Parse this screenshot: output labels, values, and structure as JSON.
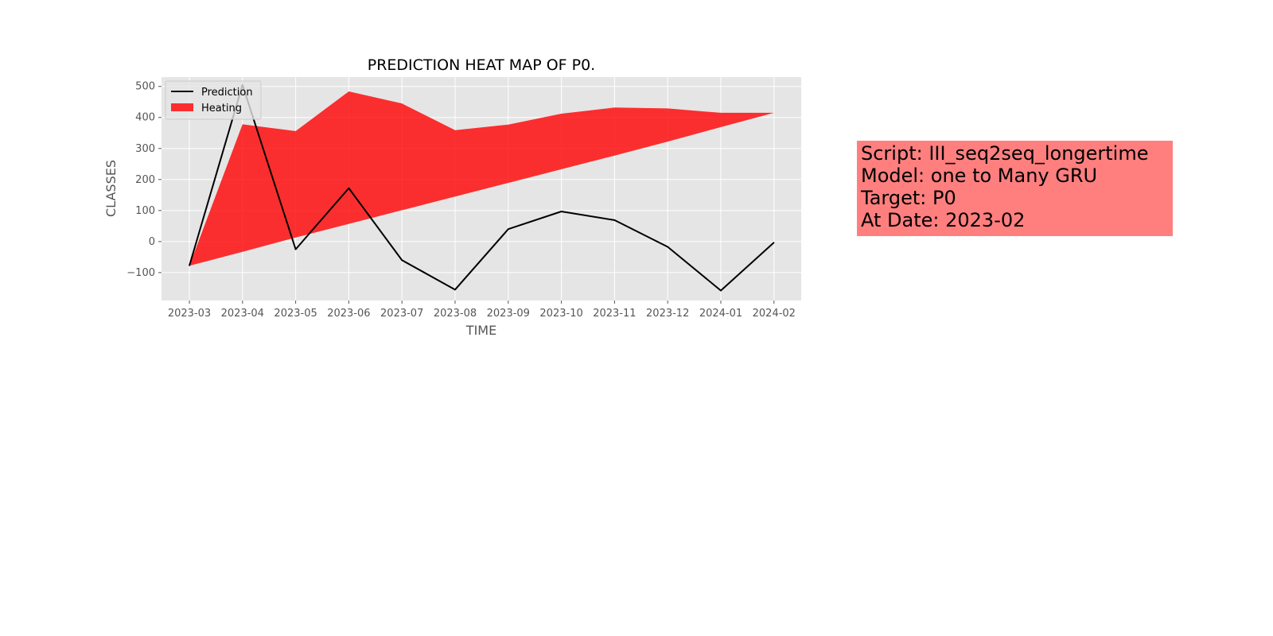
{
  "chart_data": {
    "type": "area",
    "title": "PREDICTION HEAT MAP OF P0.",
    "xlabel": "TIME",
    "ylabel": "CLASSES",
    "x": [
      "2023-03",
      "2023-04",
      "2023-05",
      "2023-06",
      "2023-07",
      "2023-08",
      "2023-09",
      "2023-10",
      "2023-11",
      "2023-12",
      "2024-01",
      "2024-02"
    ],
    "ylim": [
      -190,
      530
    ],
    "yticks": [
      -100,
      0,
      100,
      200,
      300,
      400,
      500
    ],
    "grid": true,
    "legend_position": "upper-left",
    "series": [
      {
        "name": "Prediction",
        "kind": "line",
        "color": "#000000",
        "values": [
          -78,
          505,
          -25,
          172,
          -60,
          -155,
          40,
          97,
          69,
          -17,
          -158,
          -3
        ]
      },
      {
        "name": "Heating",
        "kind": "band",
        "color": "#ff0000",
        "upper": [
          -78,
          378,
          356,
          484,
          445,
          359,
          377,
          412,
          432,
          429,
          415,
          415
        ],
        "lower": [
          -78,
          -33,
          13,
          57,
          101,
          145,
          189,
          233,
          277,
          322,
          369,
          415
        ]
      }
    ]
  },
  "info_box": {
    "lines": [
      "Script: III_seq2seq_longertime",
      "Model: one to Many GRU",
      "Target: P0",
      "At Date: 2023-02"
    ],
    "background": "#ff7f7f"
  }
}
